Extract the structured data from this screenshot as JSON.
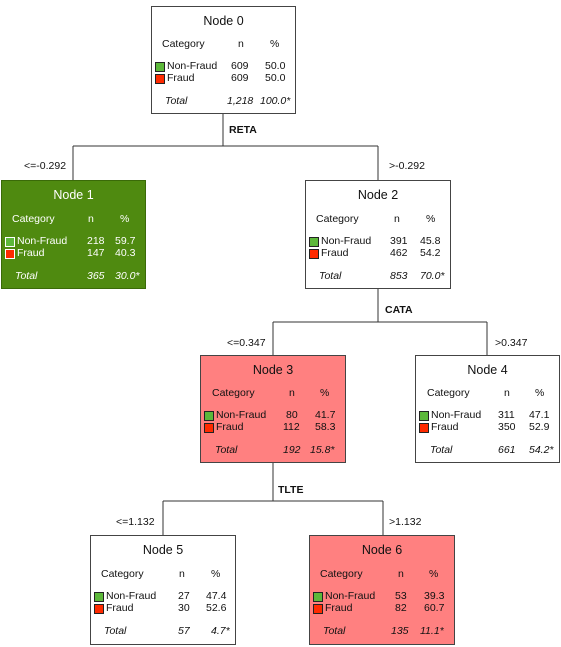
{
  "nodes": [
    {
      "title": "Node 0",
      "head": {
        "category": "Category",
        "n": "n",
        "pct": "%"
      },
      "rows": [
        {
          "label": "Non-Fraud",
          "n": "609",
          "pct": "50.0"
        },
        {
          "label": "Fraud",
          "n": "609",
          "pct": "50.0"
        }
      ],
      "total": {
        "label": "Total",
        "n": "1,218",
        "pct": "100.0*"
      }
    },
    {
      "title": "Node 1",
      "head": {
        "category": "Category",
        "n": "n",
        "pct": "%"
      },
      "rows": [
        {
          "label": "Non-Fraud",
          "n": "218",
          "pct": "59.7"
        },
        {
          "label": "Fraud",
          "n": "147",
          "pct": "40.3"
        }
      ],
      "total": {
        "label": "Total",
        "n": "365",
        "pct": "30.0*"
      }
    },
    {
      "title": "Node 2",
      "head": {
        "category": "Category",
        "n": "n",
        "pct": "%"
      },
      "rows": [
        {
          "label": "Non-Fraud",
          "n": "391",
          "pct": "45.8"
        },
        {
          "label": "Fraud",
          "n": "462",
          "pct": "54.2"
        }
      ],
      "total": {
        "label": "Total",
        "n": "853",
        "pct": "70.0*"
      }
    },
    {
      "title": "Node 3",
      "head": {
        "category": "Category",
        "n": "n",
        "pct": "%"
      },
      "rows": [
        {
          "label": "Non-Fraud",
          "n": "80",
          "pct": "41.7"
        },
        {
          "label": "Fraud",
          "n": "112",
          "pct": "58.3"
        }
      ],
      "total": {
        "label": "Total",
        "n": "192",
        "pct": "15.8*"
      }
    },
    {
      "title": "Node 4",
      "head": {
        "category": "Category",
        "n": "n",
        "pct": "%"
      },
      "rows": [
        {
          "label": "Non-Fraud",
          "n": "311",
          "pct": "47.1"
        },
        {
          "label": "Fraud",
          "n": "350",
          "pct": "52.9"
        }
      ],
      "total": {
        "label": "Total",
        "n": "661",
        "pct": "54.2*"
      }
    },
    {
      "title": "Node 5",
      "head": {
        "category": "Category",
        "n": "n",
        "pct": "%"
      },
      "rows": [
        {
          "label": "Non-Fraud",
          "n": "27",
          "pct": "47.4"
        },
        {
          "label": "Fraud",
          "n": "30",
          "pct": "52.6"
        }
      ],
      "total": {
        "label": "Total",
        "n": "57",
        "pct": "4.7*"
      }
    },
    {
      "title": "Node 6",
      "head": {
        "category": "Category",
        "n": "n",
        "pct": "%"
      },
      "rows": [
        {
          "label": "Non-Fraud",
          "n": "53",
          "pct": "39.3"
        },
        {
          "label": "Fraud",
          "n": "82",
          "pct": "60.7"
        }
      ],
      "total": {
        "label": "Total",
        "n": "135",
        "pct": "11.1*"
      }
    }
  ],
  "splits": {
    "s0": {
      "var": "RETA",
      "left": "<=-0.292",
      "right": ">-0.292"
    },
    "s2": {
      "var": "CATA",
      "left": "<=0.347",
      "right": ">0.347"
    },
    "s3": {
      "var": "TLTE",
      "left": "<=1.132",
      "right": ">1.132"
    }
  },
  "colors": {
    "non_fraud": "#5cb83a",
    "fraud": "#ff2a00",
    "node1_fill": "#4f8a10",
    "node_red_fill": "#ff8080"
  }
}
